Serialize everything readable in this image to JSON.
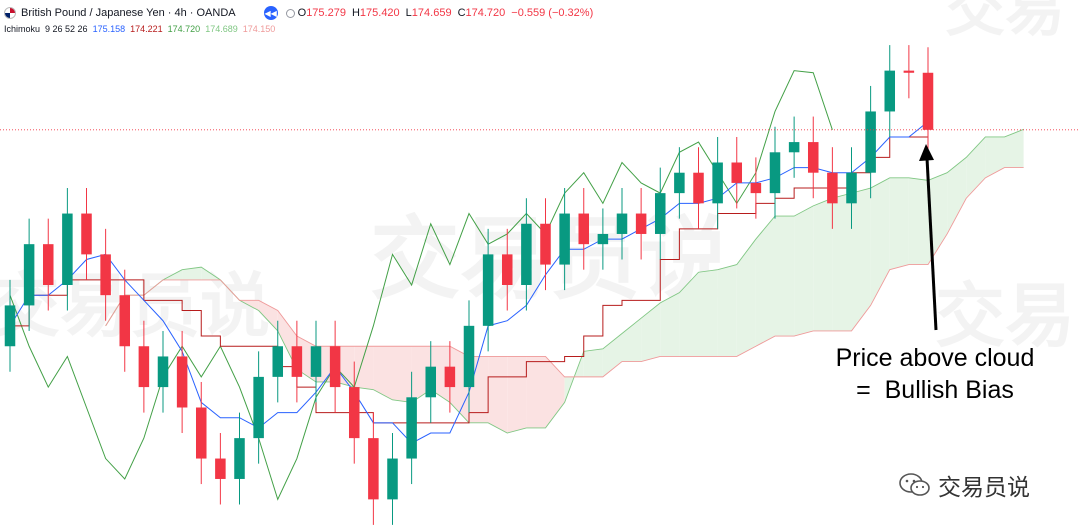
{
  "header": {
    "title": "British Pound / Japanese Yen · 4h · OANDA",
    "ohlc": [
      {
        "k": "O",
        "v": "175.279"
      },
      {
        "k": "H",
        "v": "175.420"
      },
      {
        "k": "L",
        "v": "174.659"
      },
      {
        "k": "C",
        "v": "174.720"
      }
    ],
    "change": "−0.559 (−0.32%)"
  },
  "indicator": {
    "name": "Ichimoku",
    "params": "9 26 52 26",
    "values": [
      {
        "v": "175.158",
        "color": "#2962ff"
      },
      {
        "v": "174.221",
        "color": "#b71c1c"
      },
      {
        "v": "174.720",
        "color": "#43a047"
      },
      {
        "v": "174.689",
        "color": "#81c784"
      },
      {
        "v": "174.150",
        "color": "#ef9a9a"
      }
    ]
  },
  "annotation": {
    "line1": "Price above cloud",
    "line2": "=  Bullish Bias"
  },
  "watermark": {
    "text": "交易员说"
  },
  "logo": {
    "text": "交易员说",
    "icon": "wechat-icon"
  },
  "colors": {
    "up": "#089981",
    "down": "#f23645",
    "conversion": "#2962ff",
    "base": "#b71c1c",
    "lagging": "#43a047",
    "cloud_bull": "#e6f4e6",
    "cloud_bear": "#fbe2e2",
    "lead_a": "#81c784",
    "lead_b": "#ef9a9a",
    "price_line": "#f23645"
  },
  "chart_data": {
    "type": "candlestick",
    "symbol": "GBPJPY",
    "interval": "4h",
    "candles": [
      {
        "x": 1,
        "o": 172.6,
        "c": 173.0
      },
      {
        "x": 2,
        "o": 173.0,
        "c": 173.6
      },
      {
        "x": 3,
        "o": 173.6,
        "c": 173.2
      },
      {
        "x": 4,
        "o": 173.2,
        "c": 173.9
      },
      {
        "x": 5,
        "o": 173.9,
        "c": 173.5
      },
      {
        "x": 6,
        "o": 173.5,
        "c": 173.1
      },
      {
        "x": 7,
        "o": 173.1,
        "c": 172.6
      },
      {
        "x": 8,
        "o": 172.6,
        "c": 172.2
      },
      {
        "x": 9,
        "o": 172.2,
        "c": 172.5
      },
      {
        "x": 10,
        "o": 172.5,
        "c": 172.0
      },
      {
        "x": 11,
        "o": 172.0,
        "c": 171.5
      },
      {
        "x": 12,
        "o": 171.5,
        "c": 171.3
      },
      {
        "x": 13,
        "o": 171.3,
        "c": 171.7
      },
      {
        "x": 14,
        "o": 171.7,
        "c": 172.3
      },
      {
        "x": 15,
        "o": 172.3,
        "c": 172.6
      },
      {
        "x": 16,
        "o": 172.6,
        "c": 172.3
      },
      {
        "x": 17,
        "o": 172.3,
        "c": 172.6
      },
      {
        "x": 18,
        "o": 172.6,
        "c": 172.2
      },
      {
        "x": 19,
        "o": 172.2,
        "c": 171.7
      },
      {
        "x": 20,
        "o": 171.7,
        "c": 171.1
      },
      {
        "x": 21,
        "o": 171.1,
        "c": 171.5
      },
      {
        "x": 22,
        "o": 171.5,
        "c": 172.1
      },
      {
        "x": 23,
        "o": 172.1,
        "c": 172.4
      },
      {
        "x": 24,
        "o": 172.4,
        "c": 172.2
      },
      {
        "x": 25,
        "o": 172.2,
        "c": 172.8
      },
      {
        "x": 26,
        "o": 172.8,
        "c": 173.5
      },
      {
        "x": 27,
        "o": 173.5,
        "c": 173.2
      },
      {
        "x": 28,
        "o": 173.2,
        "c": 173.8
      },
      {
        "x": 29,
        "o": 173.8,
        "c": 173.4
      },
      {
        "x": 30,
        "o": 173.4,
        "c": 173.9
      },
      {
        "x": 31,
        "o": 173.9,
        "c": 173.6
      },
      {
        "x": 32,
        "o": 173.6,
        "c": 173.7
      },
      {
        "x": 33,
        "o": 173.7,
        "c": 173.9
      },
      {
        "x": 34,
        "o": 173.9,
        "c": 173.7
      },
      {
        "x": 35,
        "o": 173.7,
        "c": 174.1
      },
      {
        "x": 36,
        "o": 174.1,
        "c": 174.3
      },
      {
        "x": 37,
        "o": 174.3,
        "c": 174.0
      },
      {
        "x": 38,
        "o": 174.0,
        "c": 174.4
      },
      {
        "x": 39,
        "o": 174.4,
        "c": 174.2
      },
      {
        "x": 40,
        "o": 174.2,
        "c": 174.1
      },
      {
        "x": 41,
        "o": 174.1,
        "c": 174.5
      },
      {
        "x": 42,
        "o": 174.5,
        "c": 174.6
      },
      {
        "x": 43,
        "o": 174.6,
        "c": 174.3
      },
      {
        "x": 44,
        "o": 174.3,
        "c": 174.0
      },
      {
        "x": 45,
        "o": 174.0,
        "c": 174.3
      },
      {
        "x": 46,
        "o": 174.3,
        "c": 174.9
      },
      {
        "x": 47,
        "o": 174.9,
        "c": 175.3
      },
      {
        "x": 48,
        "o": 175.3,
        "c": 175.279
      },
      {
        "x": 49,
        "o": 175.279,
        "c": 174.72
      }
    ],
    "last_price": 174.72,
    "ylim": [
      170.8,
      175.6
    ]
  }
}
